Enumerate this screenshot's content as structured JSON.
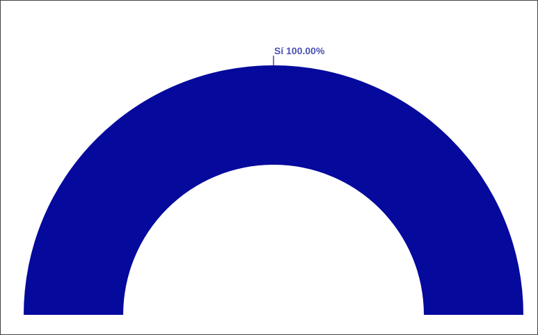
{
  "chart_data": {
    "type": "pie",
    "variant": "semi-donut",
    "slices": [
      {
        "label": "Sí",
        "value": 100.0,
        "display": "Sí 100.00%",
        "color": "#05099c"
      }
    ],
    "label_color": "#4a51b0",
    "leader_color": "#2a2f8f",
    "legend": "none",
    "title": ""
  }
}
